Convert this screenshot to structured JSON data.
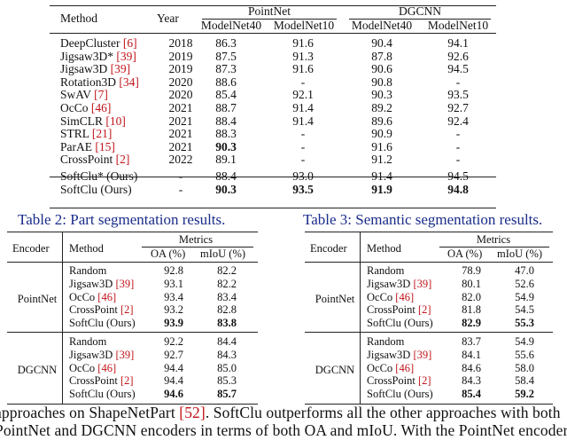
{
  "table1": {
    "headers": {
      "method": "Method",
      "year": "Year",
      "group_pointnet": "PointNet",
      "group_dgcnn": "DGCNN",
      "sub": [
        "ModelNet40",
        "ModelNet10",
        "ModelNet40",
        "ModelNet10"
      ]
    },
    "rows": [
      {
        "name": "DeepCluster",
        "ref": "[6]",
        "year": "2018",
        "v": [
          "86.3",
          "91.6",
          "90.4",
          "94.1"
        ],
        "bold": []
      },
      {
        "name": "Jigsaw3D*",
        "ref": "[39]",
        "year": "2019",
        "v": [
          "87.5",
          "91.3",
          "87.8",
          "92.6"
        ],
        "bold": []
      },
      {
        "name": "Jigsaw3D",
        "ref": "[39]",
        "year": "2019",
        "v": [
          "87.3",
          "91.6",
          "90.6",
          "94.5"
        ],
        "bold": []
      },
      {
        "name": "Rotation3D",
        "ref": "[34]",
        "year": "2020",
        "v": [
          "88.6",
          "-",
          "90.8",
          "-"
        ],
        "bold": []
      },
      {
        "name": "SwAV",
        "ref": "[7]",
        "year": "2020",
        "v": [
          "85.4",
          "92.1",
          "90.3",
          "93.5"
        ],
        "bold": []
      },
      {
        "name": "OcCo",
        "ref": "[46]",
        "year": "2021",
        "v": [
          "88.7",
          "91.4",
          "89.2",
          "92.7"
        ],
        "bold": []
      },
      {
        "name": "SimCLR",
        "ref": "[10]",
        "year": "2021",
        "v": [
          "88.4",
          "91.4",
          "89.6",
          "92.4"
        ],
        "bold": []
      },
      {
        "name": "STRL",
        "ref": "[21]",
        "year": "2021",
        "v": [
          "88.3",
          "-",
          "90.9",
          "-"
        ],
        "bold": []
      },
      {
        "name": "ParAE",
        "ref": "[15]",
        "year": "2021",
        "v": [
          "90.3",
          "-",
          "91.6",
          "-"
        ],
        "bold": [
          0
        ]
      },
      {
        "name": "CrossPoint",
        "ref": "[2]",
        "year": "2022",
        "v": [
          "89.1",
          "-",
          "91.2",
          "-"
        ],
        "bold": []
      },
      {
        "name": "SoftClu* (Ours)",
        "ref": "",
        "year": "-",
        "v": [
          "88.4",
          "93.0",
          "91.4",
          "94.5"
        ],
        "bold": []
      },
      {
        "name": "SoftClu (Ours)",
        "ref": "",
        "year": "-",
        "v": [
          "90.3",
          "93.5",
          "91.9",
          "94.8"
        ],
        "bold": [
          0,
          1,
          2,
          3
        ]
      }
    ]
  },
  "table2": {
    "caption": "Table 2: Part segmentation results.",
    "headers": {
      "encoder": "Encoder",
      "method": "Method",
      "metrics": "Metrics",
      "oa": "OA (%)",
      "miou": "mIoU (%)"
    },
    "groups": [
      {
        "encoder": "PointNet",
        "rows": [
          {
            "name": "Random",
            "ref": "",
            "oa": "92.8",
            "miou": "82.2",
            "bold": false
          },
          {
            "name": "Jigsaw3D",
            "ref": "[39]",
            "oa": "93.1",
            "miou": "82.2",
            "bold": false
          },
          {
            "name": "OcCo",
            "ref": "[46]",
            "oa": "93.4",
            "miou": "83.4",
            "bold": false
          },
          {
            "name": "CrossPoint",
            "ref": "[2]",
            "oa": "93.2",
            "miou": "82.8",
            "bold": false
          },
          {
            "name": "SoftClu (Ours)",
            "ref": "",
            "oa": "93.9",
            "miou": "83.8",
            "bold": true
          }
        ]
      },
      {
        "encoder": "DGCNN",
        "rows": [
          {
            "name": "Random",
            "ref": "",
            "oa": "92.2",
            "miou": "84.4",
            "bold": false
          },
          {
            "name": "Jigsaw3D",
            "ref": "[39]",
            "oa": "92.7",
            "miou": "84.3",
            "bold": false
          },
          {
            "name": "OcCo",
            "ref": "[46]",
            "oa": "94.4",
            "miou": "85.0",
            "bold": false
          },
          {
            "name": "CrossPoint",
            "ref": "[2]",
            "oa": "94.4",
            "miou": "85.3",
            "bold": false
          },
          {
            "name": "SoftClu (Ours)",
            "ref": "",
            "oa": "94.6",
            "miou": "85.7",
            "bold": true
          }
        ]
      }
    ]
  },
  "table3": {
    "caption": "Table 3: Semantic segmentation results.",
    "headers": {
      "encoder": "Encoder",
      "method": "Method",
      "metrics": "Metrics",
      "oa": "OA (%)",
      "miou": "mIoU (%)"
    },
    "groups": [
      {
        "encoder": "PointNet",
        "rows": [
          {
            "name": "Random",
            "ref": "",
            "oa": "78.9",
            "miou": "47.0",
            "bold": false
          },
          {
            "name": "Jigsaw3D",
            "ref": "[39]",
            "oa": "80.1",
            "miou": "52.6",
            "bold": false
          },
          {
            "name": "OcCo",
            "ref": "[46]",
            "oa": "82.0",
            "miou": "54.9",
            "bold": false
          },
          {
            "name": "CrossPoint",
            "ref": "[2]",
            "oa": "81.8",
            "miou": "54.5",
            "bold": false
          },
          {
            "name": "SoftClu (Ours)",
            "ref": "",
            "oa": "82.9",
            "miou": "55.3",
            "bold": true
          }
        ]
      },
      {
        "encoder": "DGCNN",
        "rows": [
          {
            "name": "Random",
            "ref": "",
            "oa": "83.7",
            "miou": "54.9",
            "bold": false
          },
          {
            "name": "Jigsaw3D",
            "ref": "[39]",
            "oa": "84.1",
            "miou": "55.6",
            "bold": false
          },
          {
            "name": "OcCo",
            "ref": "[46]",
            "oa": "84.6",
            "miou": "58.0",
            "bold": false
          },
          {
            "name": "CrossPoint",
            "ref": "[2]",
            "oa": "84.3",
            "miou": "58.4",
            "bold": false
          },
          {
            "name": "SoftClu (Ours)",
            "ref": "",
            "oa": "85.4",
            "miou": "59.2",
            "bold": true
          }
        ]
      }
    ]
  },
  "body": {
    "line1_a": "approaches on ShapeNetPart ",
    "line1_ref": "[52]",
    "line1_b": ". SoftClu outperforms all the other approaches with both",
    "line2": "PointNet and DGCNN encoders in terms of both OA and mIoU. With the PointNet encoder,"
  }
}
